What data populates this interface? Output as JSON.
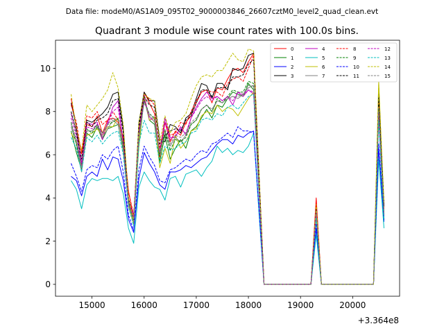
{
  "chart_data": {
    "type": "line",
    "suptitle": "Data file: modeM0/AS1A09_095T02_9000003846_26607cztM0_level2_quad_clean.evt",
    "title": "Quadrant 3 module wise count rates with 100.0s bins.",
    "xlabel": "",
    "ylabel": "",
    "x_offset_label": "+3.364e8",
    "xlim": [
      14300,
      20900
    ],
    "ylim": [
      -0.55,
      11.3
    ],
    "xticks": [
      15000,
      16000,
      17000,
      18000,
      19000,
      20000
    ],
    "yticks": [
      0,
      2,
      4,
      6,
      8,
      10
    ],
    "x": [
      14600,
      14700,
      14800,
      14900,
      15000,
      15100,
      15200,
      15300,
      15400,
      15500,
      15600,
      15700,
      15800,
      15900,
      16000,
      16100,
      16200,
      16300,
      16400,
      16500,
      16600,
      16700,
      16800,
      16900,
      17000,
      17100,
      17200,
      17300,
      17400,
      17500,
      17600,
      17700,
      17800,
      17900,
      18000,
      18100,
      18200,
      18300,
      18400,
      18500,
      18600,
      18700,
      18800,
      18900,
      19000,
      19100,
      19200,
      19300,
      19400,
      19500,
      19600,
      19700,
      19800,
      19900,
      20000,
      20100,
      20200,
      20300,
      20400,
      20500,
      20600
    ],
    "series": [
      {
        "name": "0",
        "color": "#ff0000",
        "dash": "solid",
        "values": [
          8.6,
          7.2,
          6.1,
          7.4,
          7.3,
          7.8,
          7.0,
          7.6,
          7.7,
          7.5,
          6.8,
          4.3,
          3.1,
          7.0,
          8.9,
          8.4,
          7.9,
          5.9,
          7.5,
          6.6,
          7.1,
          6.9,
          7.5,
          7.8,
          8.4,
          8.9,
          9.0,
          8.4,
          9.1,
          9.0,
          9.5,
          9.9,
          10.0,
          9.8,
          10.3,
          10.7,
          5.2,
          0,
          0,
          0,
          0,
          0,
          0,
          0,
          0,
          0,
          0,
          4.0,
          0,
          0,
          0,
          0,
          0,
          0,
          0,
          0,
          0,
          0,
          0,
          8.6,
          3.5
        ]
      },
      {
        "name": "1",
        "color": "#008000",
        "dash": "solid",
        "values": [
          7.1,
          6.1,
          5.3,
          7.0,
          6.8,
          7.3,
          6.7,
          7.2,
          7.3,
          7.4,
          6.2,
          3.8,
          2.9,
          6.4,
          8.6,
          7.6,
          7.4,
          5.7,
          6.9,
          5.8,
          6.3,
          6.7,
          6.3,
          7.1,
          7.3,
          7.7,
          8.1,
          7.7,
          8.3,
          8.2,
          8.6,
          8.9,
          8.8,
          8.7,
          9.3,
          9.0,
          4.5,
          0,
          0,
          0,
          0,
          0,
          0,
          0,
          0,
          0,
          0,
          3.2,
          0,
          0,
          0,
          0,
          0,
          0,
          0,
          0,
          0,
          0,
          0,
          8.0,
          3.0
        ]
      },
      {
        "name": "2",
        "color": "#0000ff",
        "dash": "solid",
        "values": [
          5.0,
          4.8,
          4.1,
          5.0,
          5.2,
          5.0,
          5.8,
          5.3,
          5.9,
          5.8,
          4.8,
          3.0,
          2.4,
          4.9,
          6.1,
          5.6,
          5.2,
          4.6,
          4.4,
          5.2,
          5.2,
          5.3,
          5.5,
          5.4,
          5.6,
          5.8,
          5.9,
          6.2,
          6.5,
          6.7,
          6.7,
          6.5,
          6.9,
          6.8,
          7.0,
          7.1,
          3.5,
          0,
          0,
          0,
          0,
          0,
          0,
          0,
          0,
          0,
          0,
          2.6,
          0,
          0,
          0,
          0,
          0,
          0,
          0,
          0,
          0,
          0,
          0,
          6.3,
          2.9
        ]
      },
      {
        "name": "3",
        "color": "#000000",
        "dash": "solid",
        "values": [
          8.4,
          7.3,
          5.5,
          7.6,
          7.5,
          7.7,
          7.9,
          8.2,
          8.8,
          8.9,
          7.2,
          3.9,
          3.0,
          7.5,
          8.9,
          8.5,
          8.5,
          6.7,
          6.6,
          7.4,
          7.3,
          7.0,
          7.7,
          7.9,
          8.6,
          9.3,
          9.2,
          8.6,
          9.3,
          9.3,
          9.0,
          10.0,
          9.9,
          10.0,
          10.6,
          10.7,
          5.3,
          0,
          0,
          0,
          0,
          0,
          0,
          0,
          0,
          0,
          0,
          3.6,
          0,
          0,
          0,
          0,
          0,
          0,
          0,
          0,
          0,
          0,
          0,
          8.9,
          3.7
        ]
      },
      {
        "name": "4",
        "color": "#bf00bf",
        "dash": "solid",
        "values": [
          7.9,
          7.1,
          5.6,
          7.5,
          7.4,
          7.5,
          6.7,
          7.5,
          8.2,
          8.5,
          6.5,
          3.9,
          3.2,
          7.0,
          8.8,
          7.6,
          7.7,
          6.1,
          7.7,
          6.8,
          6.8,
          7.3,
          6.9,
          7.7,
          8.2,
          8.6,
          8.9,
          8.6,
          8.7,
          8.5,
          8.7,
          8.3,
          8.9,
          8.7,
          9.0,
          8.8,
          4.4,
          0,
          0,
          0,
          0,
          0,
          0,
          0,
          0,
          0,
          0,
          3.4,
          0,
          0,
          0,
          0,
          0,
          0,
          0,
          0,
          0,
          0,
          0,
          7.7,
          3.2
        ]
      },
      {
        "name": "5",
        "color": "#00bfbf",
        "dash": "solid",
        "values": [
          4.8,
          4.4,
          3.5,
          4.6,
          4.9,
          4.8,
          4.9,
          4.9,
          4.8,
          5.0,
          4.2,
          2.6,
          1.9,
          4.5,
          5.2,
          4.8,
          4.5,
          4.4,
          3.9,
          4.9,
          5.0,
          4.5,
          5.1,
          5.2,
          5.3,
          5.0,
          5.4,
          5.7,
          6.4,
          6.1,
          6.3,
          6.0,
          6.2,
          6.1,
          6.4,
          7.0,
          3.4,
          0,
          0,
          0,
          0,
          0,
          0,
          0,
          0,
          0,
          0,
          2.3,
          0,
          0,
          0,
          0,
          0,
          0,
          0,
          0,
          0,
          0,
          0,
          5.8,
          2.6
        ]
      },
      {
        "name": "6",
        "color": "#bfbf00",
        "dash": "solid",
        "values": [
          7.0,
          6.6,
          5.4,
          6.9,
          7.0,
          7.2,
          6.9,
          7.3,
          7.3,
          7.7,
          6.4,
          3.6,
          2.8,
          6.5,
          8.7,
          7.6,
          7.7,
          5.4,
          6.3,
          5.6,
          6.9,
          6.3,
          6.6,
          7.1,
          7.2,
          7.8,
          8.0,
          7.9,
          8.3,
          8.0,
          8.2,
          8.1,
          7.8,
          8.2,
          8.6,
          8.9,
          4.4,
          0,
          0,
          0,
          0,
          0,
          0,
          0,
          0,
          0,
          0,
          3.3,
          0,
          0,
          0,
          0,
          0,
          0,
          0,
          0,
          0,
          0,
          0,
          9.4,
          3.3
        ]
      },
      {
        "name": "7",
        "color": "#808080",
        "dash": "solid",
        "values": [
          7.3,
          6.5,
          5.2,
          7.1,
          7.1,
          7.4,
          6.8,
          7.2,
          7.6,
          7.4,
          6.3,
          3.7,
          2.9,
          6.8,
          8.5,
          7.8,
          7.5,
          6.0,
          7.1,
          6.4,
          6.8,
          6.6,
          6.9,
          7.4,
          7.6,
          8.1,
          8.3,
          8.0,
          8.5,
          8.4,
          8.6,
          8.7,
          8.6,
          8.8,
          9.1,
          9.2,
          4.6,
          0,
          0,
          0,
          0,
          0,
          0,
          0,
          0,
          0,
          0,
          3.4,
          0,
          0,
          0,
          0,
          0,
          0,
          0,
          0,
          0,
          0,
          0,
          8.3,
          3.3
        ]
      },
      {
        "name": "8",
        "color": "#ff0000",
        "dash": "dashed",
        "values": [
          8.3,
          7.5,
          6.0,
          7.8,
          7.7,
          8.0,
          7.4,
          7.6,
          8.0,
          7.6,
          6.8,
          4.3,
          3.2,
          7.2,
          8.8,
          8.6,
          8.3,
          6.3,
          7.5,
          6.9,
          7.0,
          7.5,
          7.4,
          8.0,
          8.5,
          8.9,
          9.0,
          8.9,
          8.9,
          8.7,
          9.3,
          9.5,
          9.6,
          9.4,
          10.0,
          10.6,
          5.2,
          0,
          0,
          0,
          0,
          0,
          0,
          0,
          0,
          0,
          0,
          3.8,
          0,
          0,
          0,
          0,
          0,
          0,
          0,
          0,
          0,
          0,
          0,
          8.5,
          3.5
        ]
      },
      {
        "name": "9",
        "color": "#008000",
        "dash": "dashed",
        "values": [
          7.5,
          6.5,
          5.5,
          7.2,
          7.0,
          7.4,
          7.0,
          7.4,
          7.5,
          7.7,
          6.4,
          3.9,
          3.0,
          6.9,
          8.5,
          7.9,
          7.7,
          6.0,
          7.1,
          6.2,
          6.7,
          6.6,
          6.8,
          7.4,
          7.6,
          8.1,
          8.3,
          8.0,
          8.6,
          8.4,
          8.7,
          9.0,
          8.9,
          8.9,
          9.4,
          9.3,
          4.6,
          0,
          0,
          0,
          0,
          0,
          0,
          0,
          0,
          0,
          0,
          3.4,
          0,
          0,
          0,
          0,
          0,
          0,
          0,
          0,
          0,
          0,
          0,
          8.1,
          3.1
        ]
      },
      {
        "name": "10",
        "color": "#0000ff",
        "dash": "dashed",
        "values": [
          5.6,
          5.0,
          4.3,
          5.3,
          5.5,
          5.4,
          6.0,
          5.8,
          6.2,
          6.4,
          5.2,
          3.2,
          2.5,
          5.3,
          6.4,
          5.9,
          5.5,
          4.8,
          4.7,
          5.3,
          5.4,
          5.6,
          5.8,
          5.7,
          6.0,
          6.2,
          6.1,
          6.5,
          6.6,
          6.8,
          7.0,
          6.8,
          7.3,
          7.1,
          7.1,
          7.0,
          3.6,
          0,
          0,
          0,
          0,
          0,
          0,
          0,
          0,
          0,
          0,
          2.8,
          0,
          0,
          0,
          0,
          0,
          0,
          0,
          0,
          0,
          0,
          0,
          6.5,
          3.0
        ]
      },
      {
        "name": "11",
        "color": "#000000",
        "dash": "dashed",
        "values": [
          8.0,
          7.0,
          5.8,
          7.5,
          7.3,
          7.6,
          7.7,
          7.9,
          8.5,
          8.6,
          7.0,
          4.0,
          3.0,
          7.3,
          8.7,
          8.3,
          8.2,
          6.5,
          6.9,
          7.1,
          7.2,
          7.1,
          7.6,
          7.8,
          8.4,
          9.0,
          9.0,
          8.7,
          9.1,
          9.1,
          9.1,
          9.6,
          9.6,
          9.7,
          10.2,
          10.4,
          5.1,
          0,
          0,
          0,
          0,
          0,
          0,
          0,
          0,
          0,
          0,
          3.5,
          0,
          0,
          0,
          0,
          0,
          0,
          0,
          0,
          0,
          0,
          0,
          8.7,
          3.6
        ]
      },
      {
        "name": "12",
        "color": "#bf00bf",
        "dash": "dashed",
        "values": [
          7.7,
          6.8,
          5.5,
          7.3,
          7.2,
          7.4,
          6.9,
          7.4,
          8.0,
          8.2,
          6.5,
          3.8,
          3.1,
          7.0,
          8.6,
          7.7,
          7.6,
          6.1,
          7.5,
          6.7,
          6.9,
          7.2,
          7.0,
          7.7,
          8.1,
          8.5,
          8.7,
          8.5,
          8.7,
          8.5,
          8.7,
          8.5,
          8.9,
          8.8,
          9.0,
          8.9,
          4.4,
          0,
          0,
          0,
          0,
          0,
          0,
          0,
          0,
          0,
          0,
          3.3,
          0,
          0,
          0,
          0,
          0,
          0,
          0,
          0,
          0,
          0,
          0,
          7.9,
          3.2
        ]
      },
      {
        "name": "13",
        "color": "#00bfbf",
        "dash": "dashed",
        "values": [
          6.8,
          6.3,
          5.2,
          6.8,
          6.6,
          6.9,
          6.5,
          6.8,
          7.0,
          7.1,
          6.0,
          3.6,
          2.7,
          6.5,
          7.6,
          7.0,
          7.0,
          5.6,
          6.4,
          6.2,
          6.3,
          6.5,
          6.6,
          7.0,
          7.1,
          7.6,
          7.7,
          7.6,
          7.9,
          7.8,
          8.2,
          8.3,
          8.1,
          8.4,
          8.7,
          8.8,
          4.3,
          0,
          0,
          0,
          0,
          0,
          0,
          0,
          0,
          0,
          0,
          3.1,
          0,
          0,
          0,
          0,
          0,
          0,
          0,
          0,
          0,
          0,
          0,
          7.6,
          3.0
        ]
      },
      {
        "name": "14",
        "color": "#bfbf00",
        "dash": "dashed",
        "values": [
          8.8,
          7.2,
          6.2,
          8.3,
          8.0,
          8.3,
          8.6,
          9.0,
          9.8,
          9.1,
          7.4,
          4.0,
          3.0,
          7.5,
          8.8,
          8.6,
          8.5,
          6.6,
          7.8,
          7.0,
          7.5,
          7.6,
          7.9,
          8.6,
          9.2,
          9.6,
          9.7,
          9.6,
          9.9,
          9.9,
          10.3,
          10.7,
          10.4,
          10.3,
          10.9,
          10.8,
          5.3,
          0,
          0,
          0,
          0,
          0,
          0,
          0,
          0,
          0,
          0,
          3.7,
          0,
          0,
          0,
          0,
          0,
          0,
          0,
          0,
          0,
          0,
          0,
          9.3,
          3.8
        ]
      },
      {
        "name": "15",
        "color": "#808080",
        "dash": "dashed",
        "values": [
          7.4,
          6.7,
          5.4,
          7.1,
          7.1,
          7.3,
          7.0,
          7.4,
          7.7,
          7.6,
          6.5,
          3.8,
          2.9,
          6.9,
          8.4,
          7.9,
          7.6,
          6.1,
          7.2,
          6.5,
          6.9,
          6.8,
          7.0,
          7.5,
          7.7,
          8.1,
          8.3,
          8.1,
          8.5,
          8.4,
          8.6,
          8.7,
          8.7,
          8.8,
          9.2,
          9.2,
          4.6,
          0,
          0,
          0,
          0,
          0,
          0,
          0,
          0,
          0,
          0,
          3.4,
          0,
          0,
          0,
          0,
          0,
          0,
          0,
          0,
          0,
          0,
          0,
          8.2,
          3.3
        ]
      }
    ],
    "legend": {
      "location": "top-right",
      "columns": 4
    }
  }
}
